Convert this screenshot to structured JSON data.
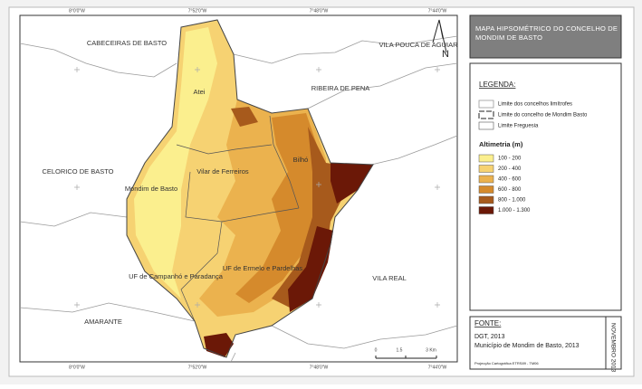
{
  "title": "MAPA HIPSOMÉTRICO DO CONCELHO DE MONDIM DE BASTO",
  "map": {
    "coordinates_top": [
      "8°0'0\"W",
      "7°52'0\"W",
      "7°48'0\"W",
      "7°44'0\"W"
    ],
    "coordinates_bottom": [
      "8°0'0\"W",
      "7°52'0\"W",
      "7°48'0\"W",
      "7°44'0\"W"
    ],
    "places": [
      "CABECEIRAS DE BASTO",
      "VILA POUCA DE AGUIAR",
      "RIBEIRA DE PENA",
      "CELORICO DE BASTO",
      "VILA REAL",
      "AMARANTE",
      "Atei",
      "Vilar de Ferreiros",
      "Bilhó",
      "Mondim de Basto",
      "UF de Campanhó e Paradança",
      "UF de Ermelo e Pardelhas"
    ],
    "north": "N",
    "scale": [
      "0",
      "1.5",
      "3 Km"
    ]
  },
  "legend": {
    "title": "LEGENDA:",
    "lines": [
      "Limite dos concelhos limítrofes",
      "Limite do concelho de Mondim Basto",
      "Limite Freguesia"
    ],
    "altimetry_title": "Altimetria (m)",
    "classes": [
      {
        "label": "100 - 200",
        "color": "#fbef8e"
      },
      {
        "label": "200 - 400",
        "color": "#f6d272"
      },
      {
        "label": "400 - 600",
        "color": "#ebb24e"
      },
      {
        "label": "600 - 800",
        "color": "#d58a2c"
      },
      {
        "label": "800 - 1.000",
        "color": "#a75a1c"
      },
      {
        "label": "1.000 - 1.300",
        "color": "#6b1807"
      }
    ]
  },
  "source": {
    "title": "FONTE:",
    "items": [
      "DGT, 2013",
      "Município de Mondim de Basto, 2013"
    ],
    "projection": "Projecção Cartográfica ETRS89 - TM06",
    "date": "NOVEMBRO 2013"
  }
}
